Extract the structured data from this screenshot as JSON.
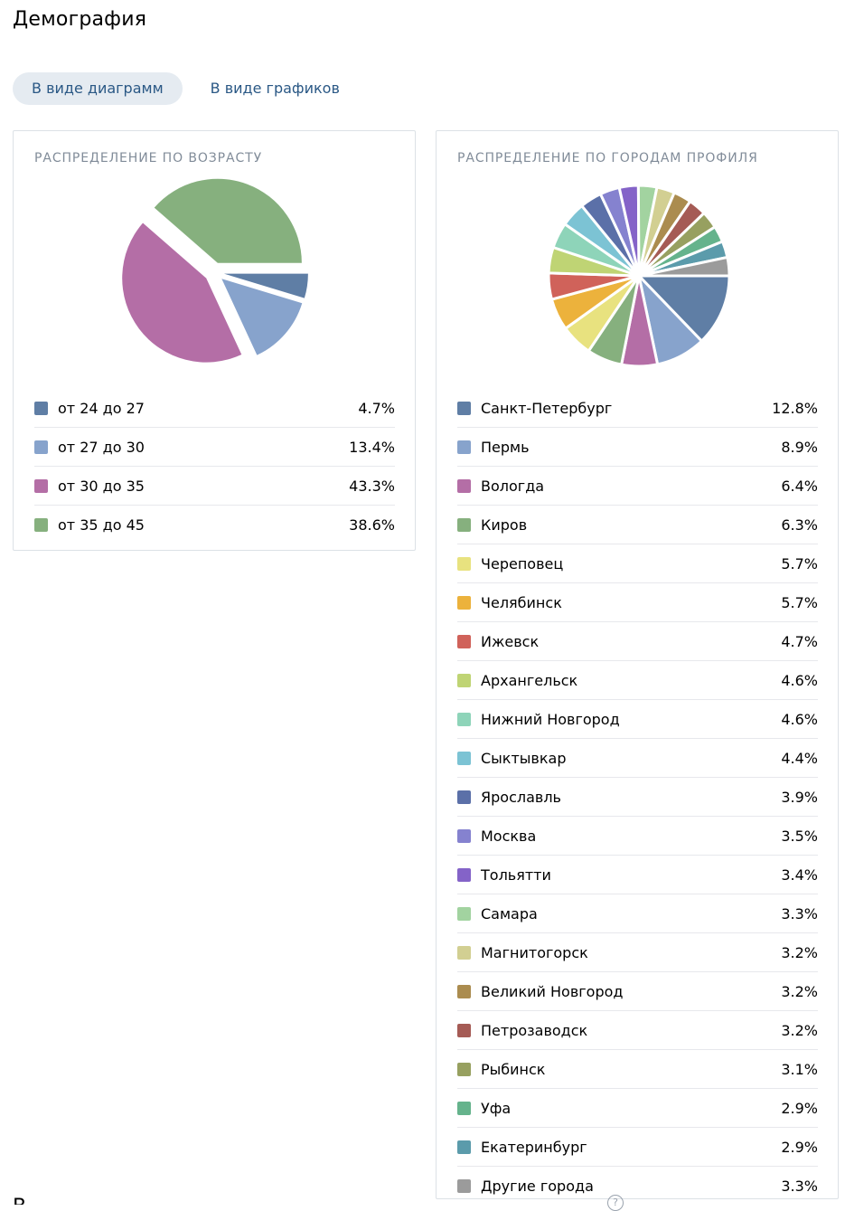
{
  "page": {
    "title": "Демография"
  },
  "tabs": [
    {
      "label": "В виде диаграмм",
      "active": true
    },
    {
      "label": "В виде графиков",
      "active": false
    }
  ],
  "help_icon_text": "?",
  "chart_data": [
    {
      "type": "pie",
      "title": "РАСПРЕДЕЛЕНИЕ ПО ВОЗРАСТУ",
      "exploded": true,
      "slices": [
        {
          "label": "от 24 до 27",
          "value": 4.7,
          "display": "4.7%",
          "color": "#5f7ea5"
        },
        {
          "label": "от 27 до 30",
          "value": 13.4,
          "display": "13.4%",
          "color": "#87a3cc"
        },
        {
          "label": "от 30 до 35",
          "value": 43.3,
          "display": "43.3%",
          "color": "#b46ea6"
        },
        {
          "label": "от 35 до 45",
          "value": 38.6,
          "display": "38.6%",
          "color": "#86b07e"
        }
      ]
    },
    {
      "type": "pie",
      "title": "РАСПРЕДЕЛЕНИЕ ПО ГОРОДАМ ПРОФИЛЯ",
      "exploded": false,
      "slices": [
        {
          "label": "Санкт-Петербург",
          "value": 12.8,
          "display": "12.8%",
          "color": "#5f7ea5"
        },
        {
          "label": "Пермь",
          "value": 8.9,
          "display": "8.9%",
          "color": "#87a3cc"
        },
        {
          "label": "Вологда",
          "value": 6.4,
          "display": "6.4%",
          "color": "#b46ea6"
        },
        {
          "label": "Киров",
          "value": 6.3,
          "display": "6.3%",
          "color": "#86b07e"
        },
        {
          "label": "Череповец",
          "value": 5.7,
          "display": "5.7%",
          "color": "#e8e27f"
        },
        {
          "label": "Челябинск",
          "value": 5.7,
          "display": "5.7%",
          "color": "#ecb23c"
        },
        {
          "label": "Ижевск",
          "value": 4.7,
          "display": "4.7%",
          "color": "#d0625a"
        },
        {
          "label": "Архангельск",
          "value": 4.6,
          "display": "4.6%",
          "color": "#bfd474"
        },
        {
          "label": "Нижний Новгород",
          "value": 4.6,
          "display": "4.6%",
          "color": "#8ed4b9"
        },
        {
          "label": "Сыктывкар",
          "value": 4.4,
          "display": "4.4%",
          "color": "#7cc3d4"
        },
        {
          "label": "Ярославль",
          "value": 3.9,
          "display": "3.9%",
          "color": "#5b70a8"
        },
        {
          "label": "Москва",
          "value": 3.5,
          "display": "3.5%",
          "color": "#8582cf"
        },
        {
          "label": "Тольятти",
          "value": 3.4,
          "display": "3.4%",
          "color": "#8463c8"
        },
        {
          "label": "Самара",
          "value": 3.3,
          "display": "3.3%",
          "color": "#a2d3a0"
        },
        {
          "label": "Магнитогорск",
          "value": 3.2,
          "display": "3.2%",
          "color": "#d2cf92"
        },
        {
          "label": "Великий Новгород",
          "value": 3.2,
          "display": "3.2%",
          "color": "#ab8c4f"
        },
        {
          "label": "Петрозаводск",
          "value": 3.2,
          "display": "3.2%",
          "color": "#a55b55"
        },
        {
          "label": "Рыбинск",
          "value": 3.1,
          "display": "3.1%",
          "color": "#97a060"
        },
        {
          "label": "Уфа",
          "value": 2.9,
          "display": "2.9%",
          "color": "#65b38c"
        },
        {
          "label": "Екатеринбург",
          "value": 2.9,
          "display": "2.9%",
          "color": "#5b9bab"
        },
        {
          "label": "Другие города",
          "value": 3.3,
          "display": "3.3%",
          "color": "#9b9b9b"
        }
      ]
    }
  ]
}
